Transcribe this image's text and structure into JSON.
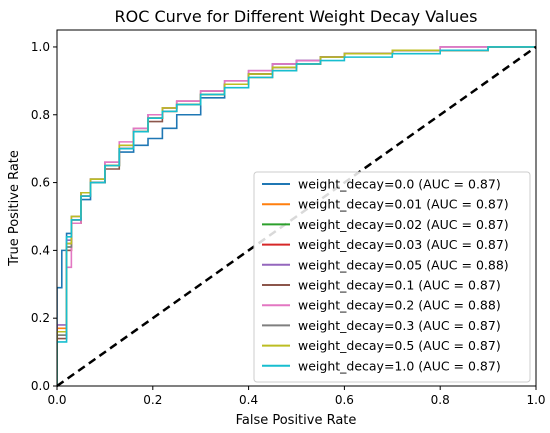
{
  "chart_data": {
    "type": "line",
    "title": "ROC Curve for Different Weight Decay Values",
    "xlabel": "False Positive Rate",
    "ylabel": "True Positive Rate",
    "xlim": [
      0.0,
      1.0
    ],
    "ylim": [
      0.0,
      1.05
    ],
    "xticks": [
      "0.0",
      "0.2",
      "0.4",
      "0.6",
      "0.8",
      "1.0"
    ],
    "yticks": [
      "0.0",
      "0.2",
      "0.4",
      "0.6",
      "0.8",
      "1.0"
    ],
    "legend_position": "lower-right",
    "grid": false,
    "diagonal": {
      "style": "dashed",
      "color": "#000000",
      "x": [
        0,
        1
      ],
      "y": [
        0,
        1
      ]
    },
    "series": [
      {
        "name": "weight_decay=0.0 (AUC = 0.87)",
        "color": "#1f77b4",
        "x": [
          0,
          0.0,
          0.01,
          0.01,
          0.02,
          0.03,
          0.05,
          0.07,
          0.1,
          0.13,
          0.16,
          0.19,
          0.22,
          0.25,
          0.3,
          0.35,
          0.4,
          0.45,
          0.5,
          0.55,
          0.6,
          0.7,
          0.8,
          0.9,
          1.0
        ],
        "y": [
          0,
          0.29,
          0.33,
          0.4,
          0.45,
          0.49,
          0.55,
          0.6,
          0.65,
          0.69,
          0.71,
          0.73,
          0.76,
          0.8,
          0.85,
          0.89,
          0.92,
          0.95,
          0.96,
          0.97,
          0.98,
          0.99,
          0.99,
          1.0,
          1.0
        ]
      },
      {
        "name": "weight_decay=0.01 (AUC = 0.87)",
        "color": "#ff7f0e",
        "x": [
          0,
          0.0,
          0.02,
          0.03,
          0.05,
          0.07,
          0.1,
          0.13,
          0.16,
          0.19,
          0.22,
          0.25,
          0.3,
          0.35,
          0.4,
          0.45,
          0.5,
          0.55,
          0.6,
          0.7,
          0.8,
          0.9,
          1.0
        ],
        "y": [
          0,
          0.17,
          0.4,
          0.48,
          0.56,
          0.6,
          0.65,
          0.7,
          0.75,
          0.79,
          0.81,
          0.83,
          0.87,
          0.89,
          0.91,
          0.93,
          0.95,
          0.97,
          0.98,
          0.99,
          0.99,
          1.0,
          1.0
        ]
      },
      {
        "name": "weight_decay=0.02 (AUC = 0.87)",
        "color": "#2ca02c",
        "x": [
          0,
          0.0,
          0.02,
          0.03,
          0.05,
          0.07,
          0.1,
          0.13,
          0.16,
          0.19,
          0.22,
          0.25,
          0.3,
          0.35,
          0.4,
          0.45,
          0.5,
          0.55,
          0.6,
          0.7,
          0.8,
          0.9,
          1.0
        ],
        "y": [
          0,
          0.15,
          0.41,
          0.49,
          0.57,
          0.61,
          0.65,
          0.7,
          0.76,
          0.79,
          0.82,
          0.83,
          0.86,
          0.89,
          0.92,
          0.94,
          0.95,
          0.97,
          0.98,
          0.99,
          0.99,
          1.0,
          1.0
        ]
      },
      {
        "name": "weight_decay=0.03 (AUC = 0.87)",
        "color": "#d62728",
        "x": [
          0,
          0.0,
          0.02,
          0.03,
          0.05,
          0.07,
          0.1,
          0.13,
          0.16,
          0.19,
          0.22,
          0.25,
          0.3,
          0.35,
          0.4,
          0.45,
          0.5,
          0.55,
          0.6,
          0.7,
          0.8,
          0.9,
          1.0
        ],
        "y": [
          0,
          0.16,
          0.42,
          0.49,
          0.56,
          0.6,
          0.65,
          0.7,
          0.75,
          0.79,
          0.82,
          0.84,
          0.86,
          0.89,
          0.92,
          0.94,
          0.95,
          0.97,
          0.98,
          0.99,
          0.99,
          1.0,
          1.0
        ]
      },
      {
        "name": "weight_decay=0.05 (AUC = 0.88)",
        "color": "#9467bd",
        "x": [
          0,
          0.0,
          0.02,
          0.03,
          0.05,
          0.07,
          0.1,
          0.13,
          0.16,
          0.19,
          0.22,
          0.25,
          0.3,
          0.35,
          0.4,
          0.45,
          0.5,
          0.55,
          0.6,
          0.7,
          0.8,
          0.9,
          1.0
        ],
        "y": [
          0,
          0.18,
          0.43,
          0.5,
          0.57,
          0.61,
          0.66,
          0.71,
          0.76,
          0.8,
          0.82,
          0.84,
          0.87,
          0.9,
          0.93,
          0.95,
          0.96,
          0.97,
          0.98,
          0.99,
          1.0,
          1.0,
          1.0
        ]
      },
      {
        "name": "weight_decay=0.1 (AUC = 0.87)",
        "color": "#8c564b",
        "x": [
          0,
          0.0,
          0.02,
          0.03,
          0.05,
          0.07,
          0.1,
          0.13,
          0.16,
          0.19,
          0.22,
          0.25,
          0.3,
          0.35,
          0.4,
          0.45,
          0.5,
          0.55,
          0.6,
          0.7,
          0.8,
          0.9,
          1.0
        ],
        "y": [
          0,
          0.14,
          0.4,
          0.48,
          0.56,
          0.6,
          0.64,
          0.7,
          0.75,
          0.78,
          0.81,
          0.83,
          0.86,
          0.89,
          0.92,
          0.94,
          0.95,
          0.97,
          0.98,
          0.99,
          0.99,
          1.0,
          1.0
        ]
      },
      {
        "name": "weight_decay=0.2 (AUC = 0.88)",
        "color": "#e377c2",
        "x": [
          0,
          0.0,
          0.02,
          0.03,
          0.05,
          0.07,
          0.1,
          0.13,
          0.16,
          0.19,
          0.22,
          0.25,
          0.3,
          0.35,
          0.4,
          0.45,
          0.5,
          0.55,
          0.6,
          0.7,
          0.8,
          0.9,
          1.0
        ],
        "y": [
          0,
          0.16,
          0.35,
          0.48,
          0.57,
          0.61,
          0.66,
          0.72,
          0.76,
          0.8,
          0.82,
          0.84,
          0.87,
          0.9,
          0.93,
          0.95,
          0.96,
          0.97,
          0.98,
          0.99,
          1.0,
          1.0,
          1.0
        ]
      },
      {
        "name": "weight_decay=0.3 (AUC = 0.87)",
        "color": "#7f7f7f",
        "x": [
          0,
          0.0,
          0.02,
          0.03,
          0.05,
          0.07,
          0.1,
          0.13,
          0.16,
          0.19,
          0.22,
          0.25,
          0.3,
          0.35,
          0.4,
          0.45,
          0.5,
          0.55,
          0.6,
          0.7,
          0.8,
          0.9,
          1.0
        ],
        "y": [
          0,
          0.15,
          0.41,
          0.49,
          0.56,
          0.6,
          0.65,
          0.7,
          0.75,
          0.79,
          0.81,
          0.83,
          0.86,
          0.89,
          0.92,
          0.94,
          0.95,
          0.97,
          0.98,
          0.99,
          0.99,
          1.0,
          1.0
        ]
      },
      {
        "name": "weight_decay=0.5 (AUC = 0.87)",
        "color": "#bcbd22",
        "x": [
          0,
          0.0,
          0.02,
          0.03,
          0.05,
          0.07,
          0.1,
          0.13,
          0.16,
          0.19,
          0.22,
          0.25,
          0.3,
          0.35,
          0.4,
          0.45,
          0.5,
          0.55,
          0.6,
          0.7,
          0.8,
          0.9,
          1.0
        ],
        "y": [
          0,
          0.16,
          0.42,
          0.5,
          0.57,
          0.61,
          0.65,
          0.71,
          0.75,
          0.79,
          0.82,
          0.83,
          0.86,
          0.89,
          0.92,
          0.94,
          0.95,
          0.97,
          0.98,
          0.99,
          0.99,
          1.0,
          1.0
        ]
      },
      {
        "name": "weight_decay=1.0 (AUC = 0.87)",
        "color": "#17becf",
        "x": [
          0,
          0.0,
          0.02,
          0.03,
          0.05,
          0.07,
          0.1,
          0.13,
          0.16,
          0.19,
          0.22,
          0.25,
          0.3,
          0.35,
          0.4,
          0.45,
          0.5,
          0.55,
          0.6,
          0.7,
          0.8,
          0.9,
          1.0
        ],
        "y": [
          0,
          0.13,
          0.44,
          0.49,
          0.56,
          0.6,
          0.65,
          0.7,
          0.75,
          0.79,
          0.81,
          0.83,
          0.86,
          0.88,
          0.91,
          0.93,
          0.95,
          0.96,
          0.97,
          0.98,
          0.99,
          1.0,
          1.0
        ]
      }
    ]
  }
}
